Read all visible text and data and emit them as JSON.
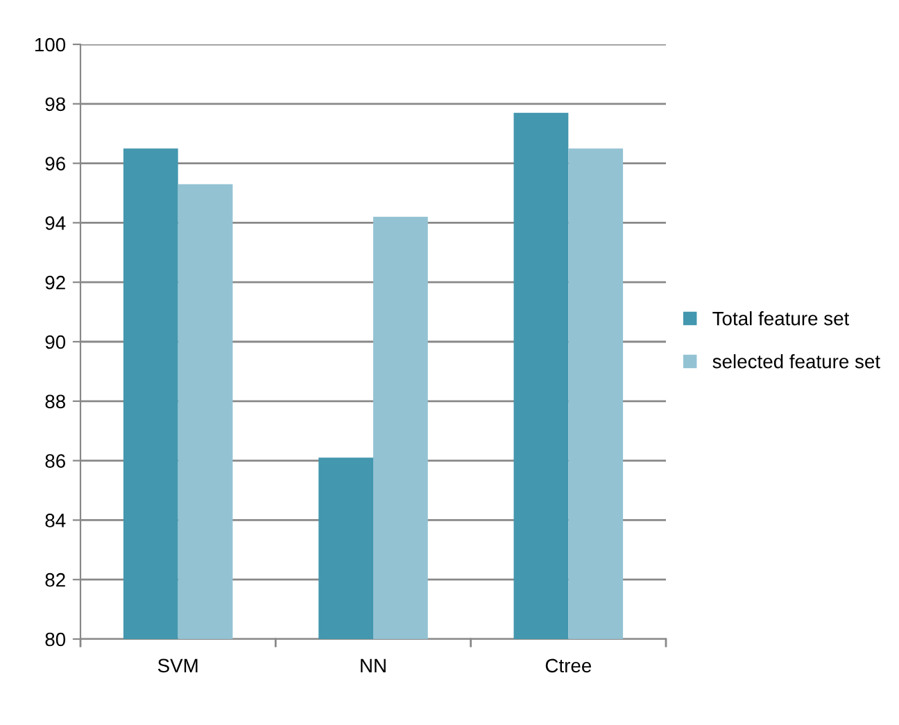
{
  "chart_data": {
    "type": "bar",
    "categories": [
      "SVM",
      "NN",
      "Ctree"
    ],
    "series": [
      {
        "name": "Total feature set",
        "color": "#4397ae",
        "values": [
          96.5,
          86.1,
          97.7
        ]
      },
      {
        "name": "selected feature set",
        "color": "#93c2d3",
        "values": [
          95.3,
          94.2,
          96.5
        ]
      }
    ],
    "ylim": [
      80,
      100
    ],
    "yticks": [
      80,
      82,
      84,
      86,
      88,
      90,
      92,
      94,
      96,
      98,
      100
    ],
    "grid": "y",
    "legend": "right"
  }
}
